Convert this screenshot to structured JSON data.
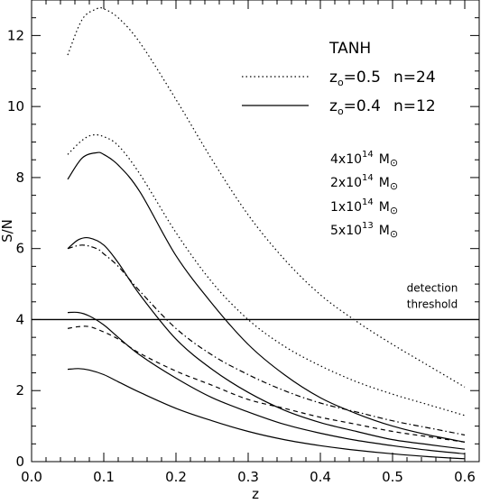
{
  "chart_data": {
    "type": "line",
    "xlabel": "z",
    "ylabel": "S/N",
    "xlim": [
      0.0,
      0.62
    ],
    "ylim": [
      0,
      13
    ],
    "grid": false,
    "x_ticks": [
      "0.0",
      "0.1",
      "0.2",
      "0.3",
      "0.4",
      "0.5",
      "0.6"
    ],
    "y_ticks": [
      "0",
      "2",
      "4",
      "6",
      "8",
      "10",
      "12"
    ],
    "legend": {
      "title": "TANH",
      "entries": [
        {
          "z0": "0.5",
          "n": "24",
          "style": "dotted"
        },
        {
          "z0": "0.4",
          "n": "12",
          "style": "solid"
        }
      ]
    },
    "masses": [
      {
        "coef": "4",
        "exp": "14"
      },
      {
        "coef": "2",
        "exp": "14"
      },
      {
        "coef": "1",
        "exp": "14"
      },
      {
        "coef": "5",
        "exp": "13"
      }
    ],
    "threshold": {
      "y": 4.0,
      "label_line1": "detection",
      "label_line2": "threshold"
    },
    "series": [
      {
        "style": "dotted",
        "x": [
          0.05,
          0.07,
          0.09,
          0.1,
          0.12,
          0.15,
          0.2,
          0.25,
          0.3,
          0.35,
          0.4,
          0.45,
          0.5,
          0.55,
          0.6
        ],
        "y": [
          11.45,
          12.45,
          12.75,
          12.75,
          12.5,
          11.8,
          10.2,
          8.5,
          6.95,
          5.7,
          4.7,
          3.95,
          3.3,
          2.7,
          2.1
        ]
      },
      {
        "style": "dotted",
        "x": [
          0.05,
          0.07,
          0.085,
          0.1,
          0.12,
          0.15,
          0.2,
          0.25,
          0.3,
          0.35,
          0.4,
          0.45,
          0.5,
          0.55,
          0.6
        ],
        "y": [
          8.65,
          9.05,
          9.2,
          9.15,
          8.9,
          8.1,
          6.45,
          5.05,
          4.0,
          3.25,
          2.7,
          2.25,
          1.9,
          1.6,
          1.3
        ]
      },
      {
        "style": "solid",
        "x": [
          0.05,
          0.07,
          0.09,
          0.1,
          0.12,
          0.15,
          0.2,
          0.25,
          0.3,
          0.35,
          0.4,
          0.45,
          0.5,
          0.55,
          0.6
        ],
        "y": [
          7.95,
          8.55,
          8.7,
          8.65,
          8.35,
          7.6,
          5.8,
          4.45,
          3.3,
          2.45,
          1.8,
          1.35,
          1.0,
          0.75,
          0.55
        ]
      },
      {
        "style": "dashdot",
        "x": [
          0.05,
          0.07,
          0.09,
          0.1,
          0.12,
          0.15,
          0.2,
          0.25,
          0.3,
          0.35,
          0.4,
          0.45,
          0.5,
          0.55,
          0.6
        ],
        "y": [
          6.0,
          6.1,
          6.0,
          5.85,
          5.5,
          4.8,
          3.75,
          3.0,
          2.45,
          2.0,
          1.65,
          1.4,
          1.15,
          0.95,
          0.75
        ]
      },
      {
        "style": "solid",
        "x": [
          0.05,
          0.065,
          0.08,
          0.1,
          0.12,
          0.15,
          0.2,
          0.25,
          0.3,
          0.35,
          0.4,
          0.45,
          0.5,
          0.55,
          0.6
        ],
        "y": [
          6.0,
          6.25,
          6.3,
          6.1,
          5.6,
          4.7,
          3.45,
          2.6,
          1.95,
          1.45,
          1.1,
          0.85,
          0.62,
          0.48,
          0.35
        ]
      },
      {
        "style": "dashed",
        "x": [
          0.05,
          0.065,
          0.08,
          0.1,
          0.12,
          0.15,
          0.2,
          0.25,
          0.3,
          0.35,
          0.4,
          0.45,
          0.5,
          0.55,
          0.6
        ],
        "y": [
          3.75,
          3.8,
          3.8,
          3.65,
          3.45,
          3.05,
          2.55,
          2.15,
          1.75,
          1.5,
          1.25,
          1.05,
          0.85,
          0.7,
          0.55
        ]
      },
      {
        "style": "solid",
        "x": [
          0.05,
          0.065,
          0.08,
          0.1,
          0.12,
          0.15,
          0.2,
          0.25,
          0.3,
          0.35,
          0.4,
          0.45,
          0.5,
          0.55,
          0.6
        ],
        "y": [
          4.2,
          4.2,
          4.1,
          3.85,
          3.5,
          3.0,
          2.35,
          1.8,
          1.4,
          1.05,
          0.8,
          0.6,
          0.45,
          0.32,
          0.22
        ]
      },
      {
        "style": "solid",
        "x": [
          0.05,
          0.065,
          0.08,
          0.1,
          0.12,
          0.15,
          0.2,
          0.25,
          0.3,
          0.35,
          0.4,
          0.45,
          0.5,
          0.55,
          0.6
        ],
        "y": [
          2.6,
          2.62,
          2.58,
          2.45,
          2.25,
          1.95,
          1.5,
          1.15,
          0.85,
          0.62,
          0.45,
          0.32,
          0.22,
          0.14,
          0.08
        ]
      }
    ]
  }
}
